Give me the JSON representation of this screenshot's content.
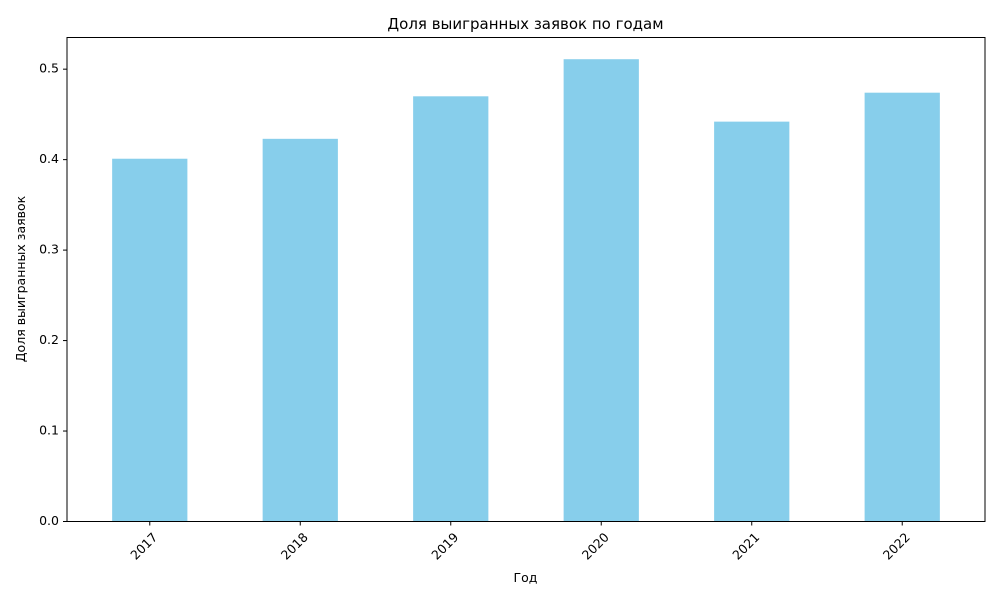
{
  "chart_data": {
    "type": "bar",
    "title": "Доля выигранных заявок по годам",
    "xlabel": "Год",
    "ylabel": "Доля выигранных заявок",
    "categories": [
      "2017",
      "2018",
      "2019",
      "2020",
      "2021",
      "2022"
    ],
    "values": [
      0.401,
      0.423,
      0.47,
      0.511,
      0.442,
      0.474
    ],
    "ylim": [
      0,
      0.535
    ],
    "yticks": [
      0.0,
      0.1,
      0.2,
      0.3,
      0.4,
      0.5
    ],
    "ytick_labels": [
      "0.0",
      "0.1",
      "0.2",
      "0.3",
      "0.4",
      "0.5"
    ],
    "grid": false,
    "bar_color": "#87ceeb",
    "xtick_rotation": "45 degrees"
  }
}
